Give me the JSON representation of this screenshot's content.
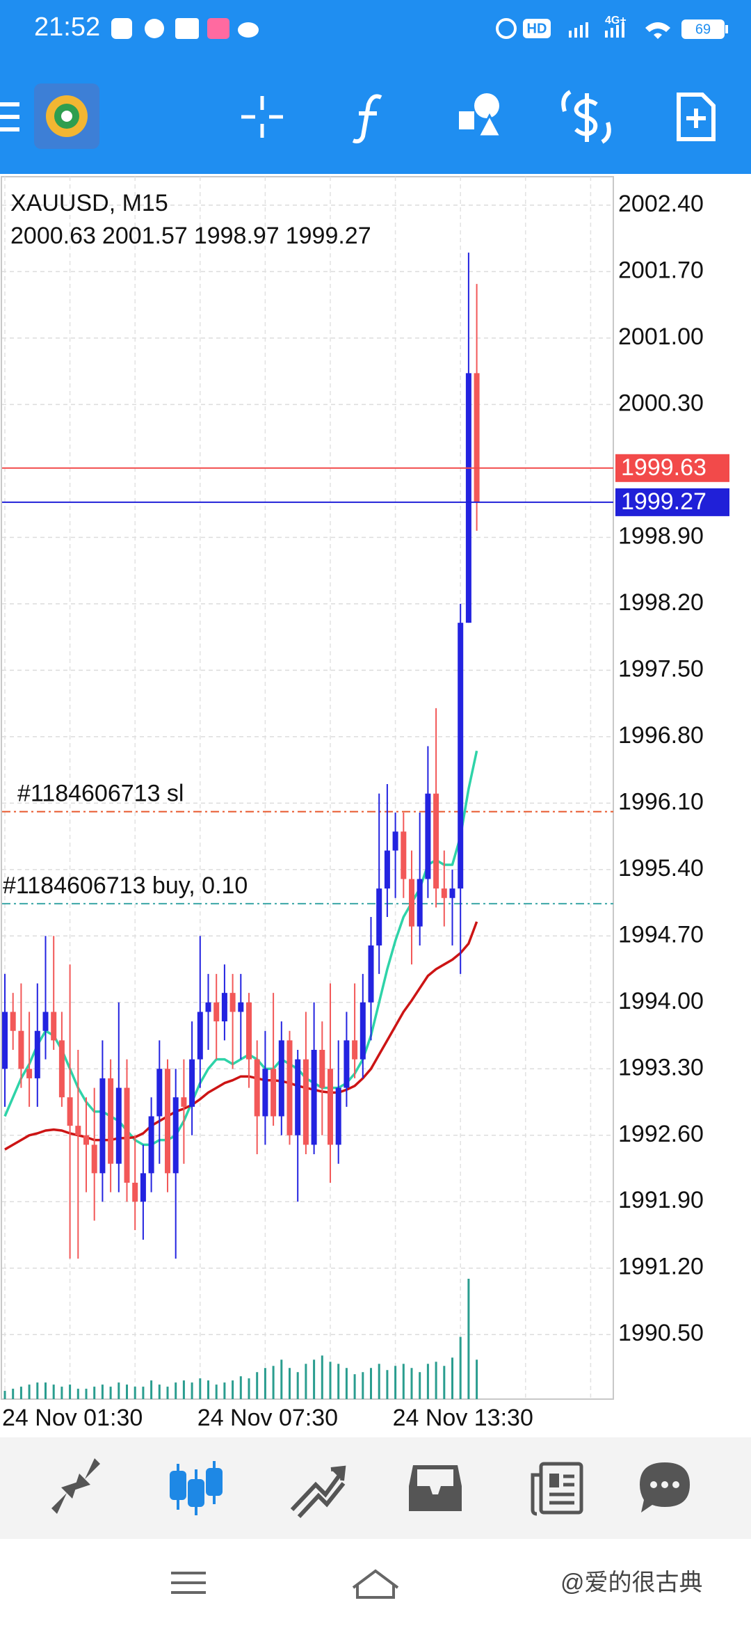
{
  "status_bar": {
    "time": "21:52",
    "hd": "HD",
    "network": "4G+",
    "battery": "69"
  },
  "watermark": "@爱的很古典",
  "chart_data": {
    "type": "candlestick",
    "title": "XAUUSD, M15",
    "categories": [
      "24 Nov 01:30",
      null,
      null,
      null,
      null,
      null,
      null,
      null,
      null,
      null,
      null,
      null,
      null,
      null,
      null,
      null,
      null,
      null,
      null,
      null,
      null,
      null,
      null,
      null,
      "24 Nov 07:30",
      null,
      null,
      null,
      null,
      null,
      null,
      null,
      null,
      null,
      null,
      null,
      null,
      null,
      null,
      null,
      null,
      null,
      null,
      null,
      null,
      null,
      null,
      null,
      "24 Nov 13:30",
      null,
      null,
      null,
      null,
      null,
      null,
      null,
      null,
      null,
      null
    ],
    "candles": [
      [
        1993.3,
        1994.3,
        1992.9,
        1993.9
      ],
      [
        1993.9,
        1994.1,
        1993.5,
        1993.7
      ],
      [
        1993.7,
        1994.2,
        1993.1,
        1993.3
      ],
      [
        1993.3,
        1993.9,
        1992.9,
        1993.2
      ],
      [
        1993.2,
        1994.2,
        1992.9,
        1993.7
      ],
      [
        1993.7,
        1994.7,
        1993.4,
        1993.9
      ],
      [
        1993.9,
        1994.7,
        1993.5,
        1993.6
      ],
      [
        1993.6,
        1993.9,
        1992.9,
        1993.0
      ],
      [
        1993.0,
        1994.4,
        1991.3,
        1992.7
      ],
      [
        1992.7,
        1993.5,
        1991.3,
        1992.6
      ],
      [
        1992.6,
        1993.0,
        1992.0,
        1992.5
      ],
      [
        1992.5,
        1993.1,
        1991.7,
        1992.2
      ],
      [
        1992.2,
        1993.6,
        1991.9,
        1993.2
      ],
      [
        1993.2,
        1993.4,
        1992.0,
        1992.3
      ],
      [
        1992.3,
        1994.0,
        1992.0,
        1993.1
      ],
      [
        1993.1,
        1993.4,
        1991.9,
        1992.1
      ],
      [
        1992.1,
        1992.6,
        1991.6,
        1991.9
      ],
      [
        1991.9,
        1992.5,
        1991.5,
        1992.2
      ],
      [
        1992.2,
        1993.0,
        1992.0,
        1992.8
      ],
      [
        1992.8,
        1993.6,
        1992.3,
        1993.3
      ],
      [
        1993.3,
        1993.4,
        1992.0,
        1992.2
      ],
      [
        1992.2,
        1993.3,
        1991.3,
        1993.0
      ],
      [
        1993.0,
        1993.4,
        1992.3,
        1992.9
      ],
      [
        1992.9,
        1993.8,
        1992.6,
        1993.4
      ],
      [
        1993.4,
        1994.7,
        1993.1,
        1993.9
      ],
      [
        1993.9,
        1994.3,
        1993.5,
        1994.0
      ],
      [
        1994.0,
        1994.3,
        1993.4,
        1993.8
      ],
      [
        1993.8,
        1994.4,
        1993.6,
        1994.1
      ],
      [
        1994.1,
        1994.3,
        1993.3,
        1993.9
      ],
      [
        1993.9,
        1994.3,
        1993.4,
        1994.0
      ],
      [
        1994.0,
        1994.1,
        1993.1,
        1993.4
      ],
      [
        1993.4,
        1993.6,
        1992.4,
        1992.8
      ],
      [
        1992.8,
        1993.7,
        1992.5,
        1993.3
      ],
      [
        1993.3,
        1994.1,
        1992.7,
        1992.8
      ],
      [
        1992.8,
        1993.8,
        1992.6,
        1993.6
      ],
      [
        1993.6,
        1993.7,
        1992.5,
        1992.6
      ],
      [
        1992.6,
        1993.5,
        1991.9,
        1993.4
      ],
      [
        1993.4,
        1993.9,
        1992.4,
        1992.5
      ],
      [
        1992.5,
        1994.0,
        1992.4,
        1993.5
      ],
      [
        1993.5,
        1993.8,
        1992.6,
        1993.1
      ],
      [
        1993.3,
        1994.2,
        1992.1,
        1992.5
      ],
      [
        1992.5,
        1993.6,
        1992.3,
        1993.1
      ],
      [
        1993.1,
        1993.9,
        1992.9,
        1993.6
      ],
      [
        1993.6,
        1994.2,
        1993.2,
        1993.4
      ],
      [
        1993.4,
        1994.3,
        1993.2,
        1994.0
      ],
      [
        1994.0,
        1994.9,
        1993.6,
        1994.6
      ],
      [
        1994.6,
        1996.2,
        1994.3,
        1995.2
      ],
      [
        1995.2,
        1996.3,
        1994.9,
        1995.6
      ],
      [
        1995.6,
        1996.0,
        1995.1,
        1995.8
      ],
      [
        1995.8,
        1996.0,
        1995.1,
        1995.3
      ],
      [
        1995.3,
        1995.6,
        1994.4,
        1994.8
      ],
      [
        1994.8,
        1996.0,
        1994.6,
        1995.3
      ],
      [
        1995.3,
        1996.7,
        1995.1,
        1996.2
      ],
      [
        1996.2,
        1997.1,
        1995.0,
        1995.2
      ],
      [
        1995.2,
        1995.6,
        1994.8,
        1995.1
      ],
      [
        1995.1,
        1995.4,
        1994.6,
        1995.2
      ],
      [
        1995.2,
        1998.2,
        1994.3,
        1998.0
      ],
      [
        1998.0,
        2001.9,
        1998.0,
        2000.63
      ],
      [
        2000.63,
        2001.57,
        1998.97,
        1999.27
      ]
    ],
    "up_color": "#2323e0",
    "down_color": "#f25858",
    "volumes": [
      8,
      10,
      12,
      14,
      16,
      16,
      14,
      12,
      14,
      10,
      10,
      12,
      14,
      12,
      16,
      14,
      12,
      12,
      18,
      14,
      12,
      16,
      18,
      16,
      20,
      18,
      14,
      16,
      18,
      22,
      20,
      26,
      30,
      32,
      38,
      30,
      26,
      34,
      38,
      42,
      36,
      34,
      30,
      24,
      26,
      30,
      34,
      28,
      32,
      34,
      30,
      26,
      34,
      36,
      32,
      40,
      60,
      116,
      38
    ],
    "volume_color": "#2a9d8f",
    "moving_averages": [
      {
        "color": "#2ed3a8",
        "values": [
          1992.8,
          1993.0,
          1993.2,
          1993.35,
          1993.55,
          1993.7,
          1993.65,
          1993.5,
          1993.3,
          1993.1,
          1992.95,
          1992.85,
          1992.85,
          1992.8,
          1992.75,
          1992.65,
          1992.55,
          1992.5,
          1992.5,
          1992.55,
          1992.55,
          1992.6,
          1992.75,
          1992.95,
          1993.15,
          1993.3,
          1993.4,
          1993.4,
          1993.35,
          1993.4,
          1993.45,
          1993.4,
          1993.3,
          1993.3,
          1993.4,
          1993.35,
          1993.3,
          1993.2,
          1993.15,
          1993.1,
          1993.1,
          1993.1,
          1993.15,
          1993.25,
          1993.4,
          1993.65,
          1994.0,
          1994.35,
          1994.65,
          1994.9,
          1995.05,
          1995.2,
          1995.45,
          1995.5,
          1995.45,
          1995.45,
          1995.75,
          1996.25,
          1996.65
        ]
      },
      {
        "color": "#cc1414",
        "values": [
          1992.45,
          1992.5,
          1992.55,
          1992.6,
          1992.62,
          1992.65,
          1992.66,
          1992.65,
          1992.62,
          1992.6,
          1992.58,
          1992.55,
          1992.55,
          1992.55,
          1992.57,
          1992.57,
          1992.58,
          1992.62,
          1992.7,
          1992.75,
          1992.8,
          1992.85,
          1992.88,
          1992.92,
          1992.98,
          1993.05,
          1993.1,
          1993.15,
          1993.18,
          1993.22,
          1993.22,
          1993.2,
          1993.18,
          1993.18,
          1993.17,
          1993.15,
          1993.12,
          1993.1,
          1993.08,
          1993.06,
          1993.05,
          1993.05,
          1993.08,
          1993.12,
          1993.2,
          1993.3,
          1993.45,
          1993.6,
          1993.75,
          1993.9,
          1994.02,
          1994.15,
          1994.28,
          1994.35,
          1994.4,
          1994.45,
          1994.52,
          1994.62,
          1994.85
        ]
      }
    ],
    "price_lines": [
      {
        "value": 1999.63,
        "color": "#f24a4a"
      },
      {
        "value": 1999.27,
        "color": "#2020d8"
      }
    ],
    "orders": [
      {
        "label": "#1184606713 sl",
        "value": 1996.01,
        "color": "#e8582c"
      },
      {
        "label": "#1184606713 buy, 0.10",
        "value": 1995.04,
        "color": "#3aa6a6"
      }
    ],
    "ylim": [
      1989.82,
      2002.7
    ],
    "yticks": [
      {
        "value": 2002.4,
        "label": "2002.40"
      },
      {
        "value": 2001.7,
        "label": "2001.70"
      },
      {
        "value": 2001.0,
        "label": "2001.00"
      },
      {
        "value": 2000.3,
        "label": "2000.30"
      },
      {
        "value": 1998.9,
        "label": "1998.90"
      },
      {
        "value": 1998.2,
        "label": "1998.20"
      },
      {
        "value": 1997.5,
        "label": "1997.50"
      },
      {
        "value": 1996.8,
        "label": "1996.80"
      },
      {
        "value": 1996.1,
        "label": "1996.10"
      },
      {
        "value": 1995.4,
        "label": "1995.40"
      },
      {
        "value": 1994.7,
        "label": "1994.70"
      },
      {
        "value": 1994.0,
        "label": "1994.00"
      },
      {
        "value": 1993.3,
        "label": "1993.30"
      },
      {
        "value": 1992.6,
        "label": "1992.60"
      },
      {
        "value": 1991.9,
        "label": "1991.90"
      },
      {
        "value": 1991.2,
        "label": "1991.20"
      },
      {
        "value": 1990.5,
        "label": "1990.50"
      }
    ],
    "grid": true
  }
}
